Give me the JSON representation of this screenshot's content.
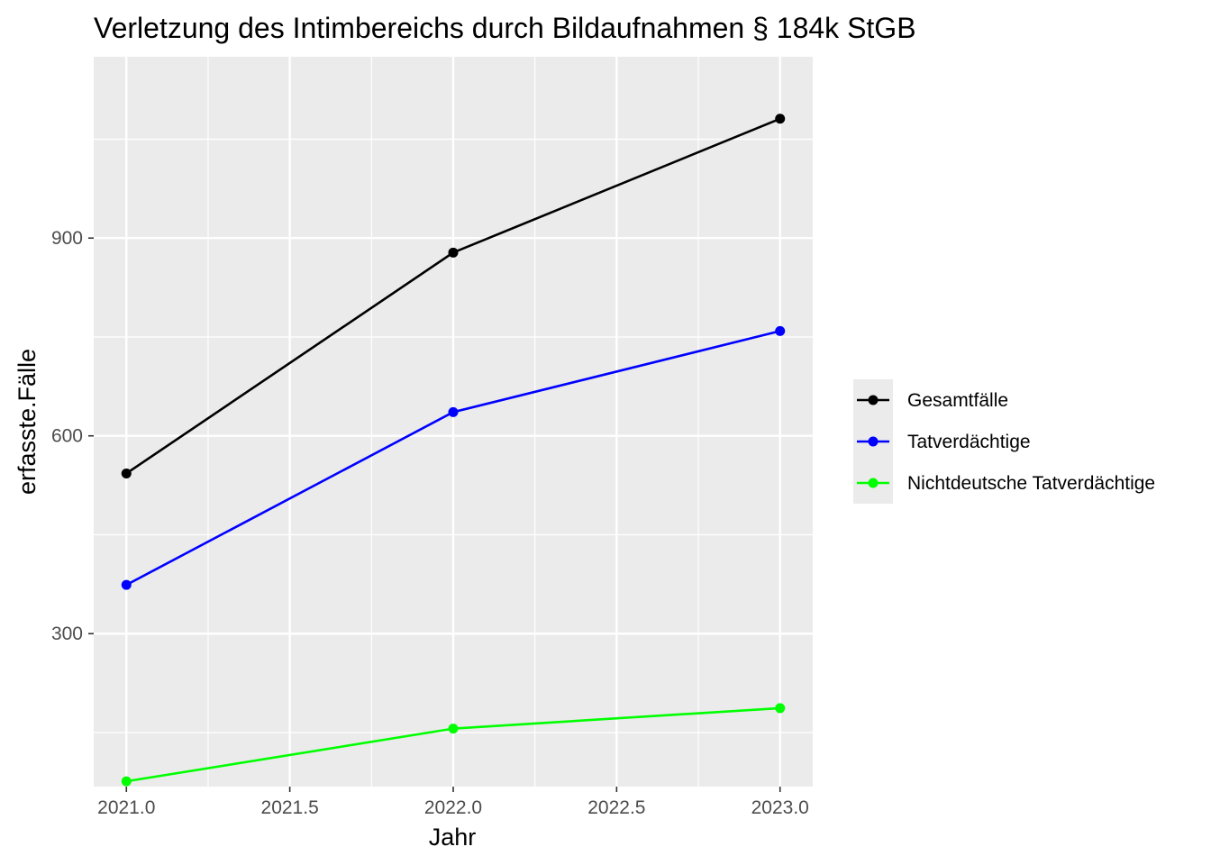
{
  "chart_data": {
    "type": "line",
    "title": "Verletzung des Intimbereichs durch Bildaufnahmen § 184k StGB",
    "xlabel": "Jahr",
    "ylabel": "erfasste.Fälle",
    "x": [
      2021,
      2022,
      2023
    ],
    "xlim": [
      2020.9,
      2023.1
    ],
    "ylim": [
      68,
      1175
    ],
    "x_ticks": [
      2021.0,
      2021.5,
      2022.0,
      2022.5,
      2023.0
    ],
    "x_tick_labels": [
      "2021.0",
      "2021.5",
      "2022.0",
      "2022.5",
      "2023.0"
    ],
    "y_ticks": [
      300,
      600,
      900
    ],
    "y_tick_labels": [
      "300",
      "600",
      "900"
    ],
    "grid": true,
    "legend": "right",
    "series": [
      {
        "name": "Gesamtfälle",
        "color": "#000000",
        "values": [
          543,
          878,
          1081
        ]
      },
      {
        "name": "Tatverdächtige",
        "color": "#0000ff",
        "values": [
          374,
          636,
          759
        ]
      },
      {
        "name": "Nichtdeutsche Tatverdächtige",
        "color": "#00ff00",
        "values": [
          76,
          156,
          187
        ]
      }
    ]
  }
}
